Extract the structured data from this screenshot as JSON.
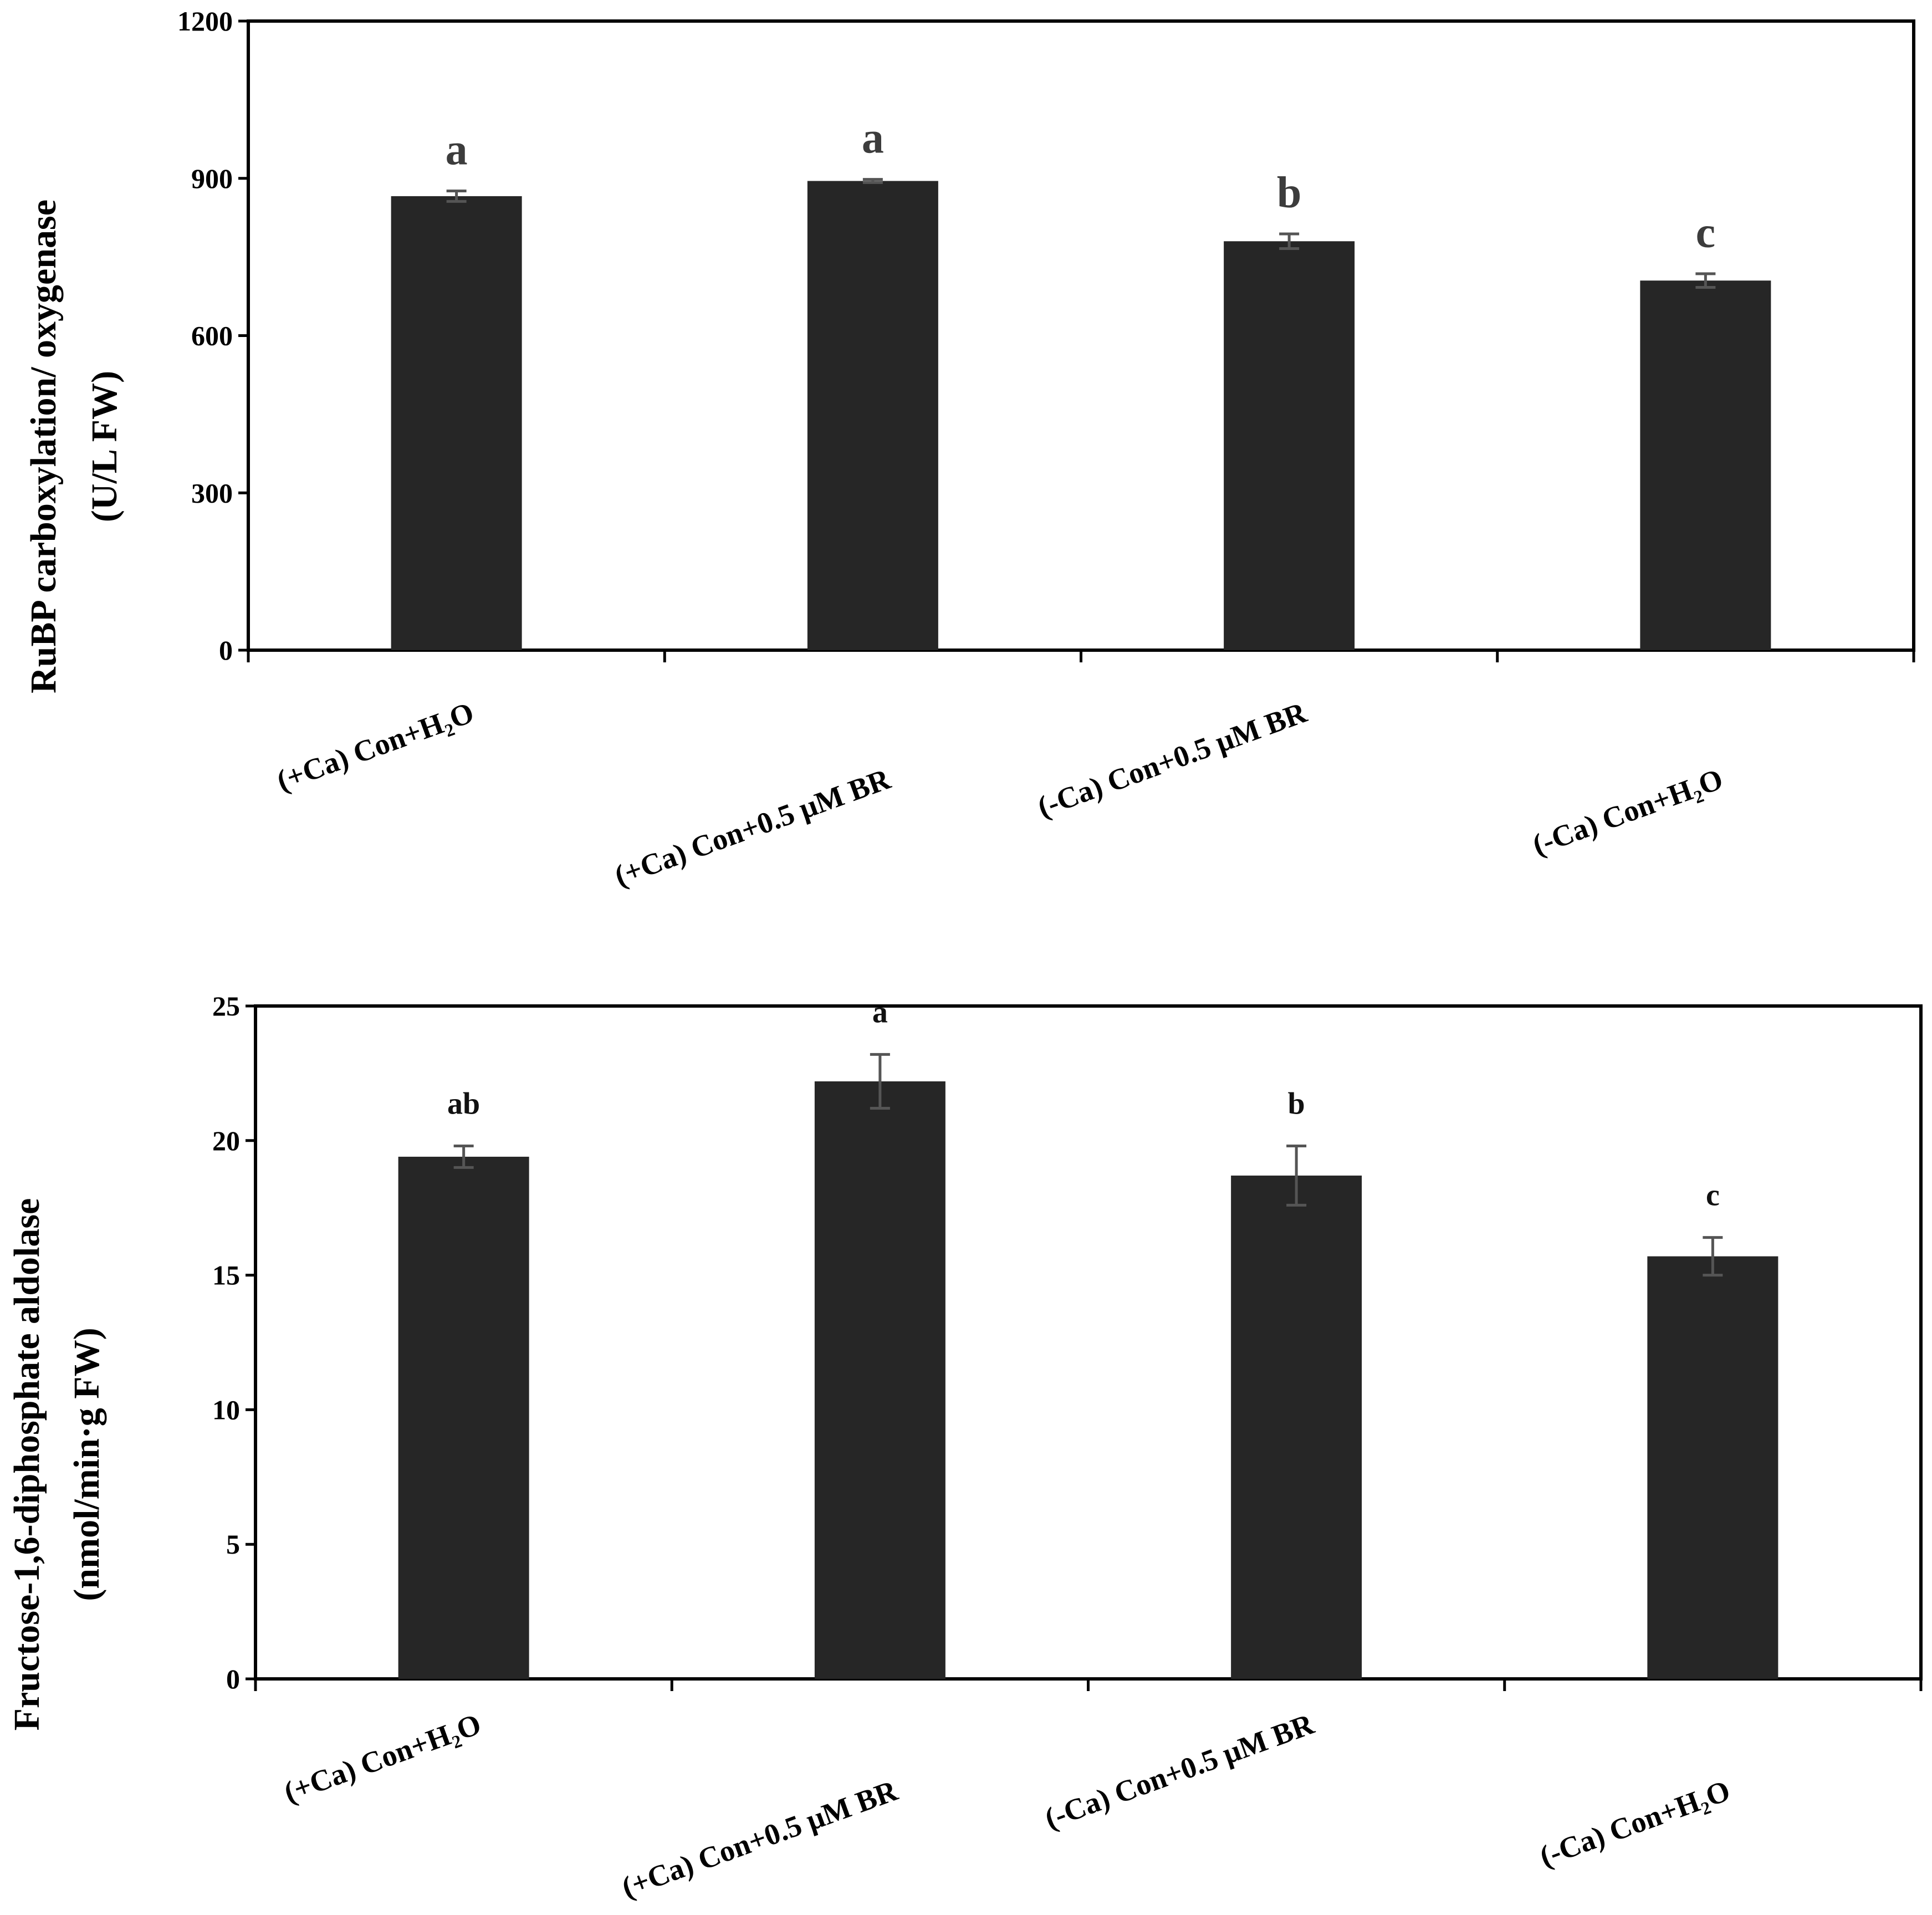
{
  "chart_data": [
    {
      "type": "bar",
      "categories": [
        "(+Ca) Con+H₂O",
        "(+Ca) Con+0.5 μM BR",
        "(-Ca) Con+0.5 μM BR",
        "(-Ca) Con+H₂O"
      ],
      "values": [
        866,
        895,
        780,
        705
      ],
      "errors": [
        10,
        3,
        14,
        13
      ],
      "letters": [
        "a",
        "a",
        "b",
        "c"
      ],
      "ylabel_lines": [
        "RuBP carboxylation/ oxygenase",
        "(U/L FW)"
      ],
      "ylim": [
        0,
        1200
      ],
      "yticks": [
        0,
        300,
        600,
        900,
        1200
      ],
      "bar_color": "#262626",
      "letter_color": "#3c3c3c",
      "error_color": "#555555"
    },
    {
      "type": "bar",
      "categories": [
        "(+Ca) Con+H₂O",
        "(+Ca) Con+0.5 μM BR",
        "(-Ca) Con+0.5 μM BR",
        "(-Ca) Con+H₂O"
      ],
      "values": [
        19.4,
        22.2,
        18.7,
        15.7
      ],
      "errors": [
        0.4,
        1.0,
        1.1,
        0.7
      ],
      "letters": [
        "ab",
        "a",
        "b",
        "c"
      ],
      "ylabel_lines": [
        "Fructose-1,6-diphosphate aldolase",
        "(nmol/min·g FW)"
      ],
      "ylim": [
        0,
        25
      ],
      "yticks": [
        0,
        5,
        10,
        15,
        20,
        25
      ],
      "bar_color": "#262626",
      "letter_color": "#111111",
      "error_color": "#555555"
    }
  ]
}
